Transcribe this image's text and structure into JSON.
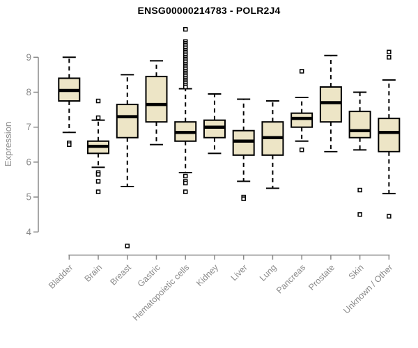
{
  "title": "ENSG00000214783 - POLR2J4",
  "chart_data": {
    "type": "boxplot",
    "title": "ENSG00000214783 - POLR2J4",
    "xlabel": "",
    "ylabel": "Expression",
    "y_ticks": [
      4,
      5,
      6,
      7,
      8,
      9
    ],
    "ylim": [
      3.4,
      10.0
    ],
    "grid": false,
    "legend": "none",
    "box_fill": "#EDE5C6",
    "box_border": "#000000",
    "median_color": "#000000",
    "axis_color": "#8a8a8a",
    "categories": [
      "Bladder",
      "Brain",
      "Breast",
      "Gastric",
      "Hematopoietic cells",
      "Kidney",
      "Liver",
      "Lung",
      "Pancreas",
      "Prostate",
      "Skin",
      "Unknown / Other"
    ],
    "series": [
      {
        "category": "Bladder",
        "whisker_low": 6.85,
        "q1": 7.75,
        "median": 8.05,
        "q3": 8.4,
        "whisker_high": 9.0,
        "outliers": [
          6.55,
          6.5
        ]
      },
      {
        "category": "Brain",
        "whisker_low": 5.85,
        "q1": 6.25,
        "median": 6.45,
        "q3": 6.6,
        "whisker_high": 7.2,
        "outliers": [
          7.75,
          7.27,
          5.7,
          5.65,
          5.45,
          5.15
        ]
      },
      {
        "category": "Breast",
        "whisker_low": 5.3,
        "q1": 6.7,
        "median": 7.3,
        "q3": 7.65,
        "whisker_high": 8.5,
        "outliers": [
          3.6
        ]
      },
      {
        "category": "Gastric",
        "whisker_low": 6.5,
        "q1": 7.15,
        "median": 7.65,
        "q3": 8.45,
        "whisker_high": 8.9,
        "outliers": []
      },
      {
        "category": "Hematopoietic cells",
        "whisker_low": 5.7,
        "q1": 6.6,
        "median": 6.85,
        "q3": 7.15,
        "whisker_high": 8.1,
        "outliers": [
          9.8,
          9.45,
          9.4,
          9.35,
          9.3,
          9.25,
          9.2,
          9.15,
          9.1,
          9.05,
          9.0,
          8.95,
          8.9,
          8.85,
          8.8,
          8.75,
          8.7,
          8.65,
          8.6,
          8.55,
          8.5,
          8.45,
          8.4,
          8.35,
          8.3,
          8.25,
          8.2,
          8.15,
          5.6,
          5.45,
          5.4,
          5.15
        ]
      },
      {
        "category": "Kidney",
        "whisker_low": 6.25,
        "q1": 6.7,
        "median": 7.0,
        "q3": 7.2,
        "whisker_high": 7.95,
        "outliers": []
      },
      {
        "category": "Liver",
        "whisker_low": 5.45,
        "q1": 6.2,
        "median": 6.6,
        "q3": 6.9,
        "whisker_high": 7.8,
        "outliers": [
          5.0,
          4.95
        ]
      },
      {
        "category": "Lung",
        "whisker_low": 5.25,
        "q1": 6.2,
        "median": 6.7,
        "q3": 7.15,
        "whisker_high": 7.75,
        "outliers": []
      },
      {
        "category": "Pancreas",
        "whisker_low": 6.6,
        "q1": 7.0,
        "median": 7.25,
        "q3": 7.4,
        "whisker_high": 7.85,
        "outliers": [
          8.6,
          6.35
        ]
      },
      {
        "category": "Prostate",
        "whisker_low": 6.3,
        "q1": 7.15,
        "median": 7.7,
        "q3": 8.15,
        "whisker_high": 9.05,
        "outliers": []
      },
      {
        "category": "Skin",
        "whisker_low": 6.35,
        "q1": 6.7,
        "median": 6.9,
        "q3": 7.45,
        "whisker_high": 8.0,
        "outliers": [
          5.2,
          4.5
        ]
      },
      {
        "category": "Unknown / Other",
        "whisker_low": 5.1,
        "q1": 6.3,
        "median": 6.85,
        "q3": 7.25,
        "whisker_high": 8.35,
        "outliers": [
          9.15,
          9.0,
          4.45
        ]
      }
    ]
  }
}
